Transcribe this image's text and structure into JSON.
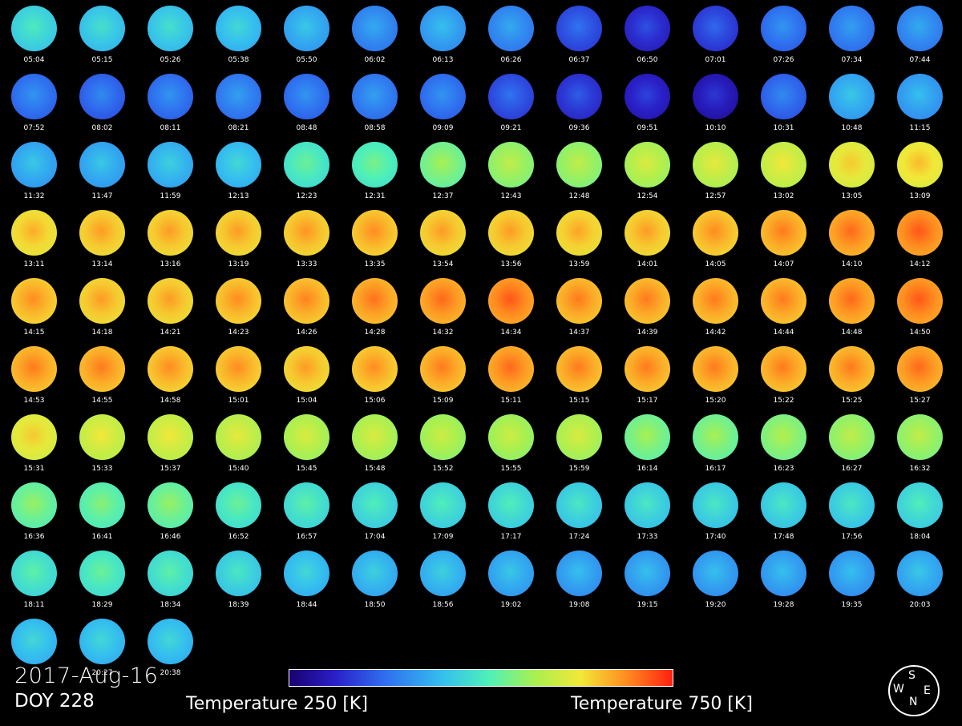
{
  "panels": [
    {
      "time": "05:04",
      "t": 0.45
    },
    {
      "time": "05:15",
      "t": 0.42
    },
    {
      "time": "05:26",
      "t": 0.42
    },
    {
      "time": "05:38",
      "t": 0.4
    },
    {
      "time": "05:50",
      "t": 0.36
    },
    {
      "time": "06:02",
      "t": 0.3
    },
    {
      "time": "06:13",
      "t": 0.34
    },
    {
      "time": "06:26",
      "t": 0.3
    },
    {
      "time": "06:37",
      "t": 0.2
    },
    {
      "time": "06:50",
      "t": 0.14
    },
    {
      "time": "07:01",
      "t": 0.18
    },
    {
      "time": "07:26",
      "t": 0.26
    },
    {
      "time": "07:34",
      "t": 0.28
    },
    {
      "time": "07:44",
      "t": 0.3
    },
    {
      "time": "07:52",
      "t": 0.26
    },
    {
      "time": "08:02",
      "t": 0.24
    },
    {
      "time": "08:11",
      "t": 0.26
    },
    {
      "time": "08:21",
      "t": 0.28
    },
    {
      "time": "08:48",
      "t": 0.26
    },
    {
      "time": "08:58",
      "t": 0.28
    },
    {
      "time": "09:09",
      "t": 0.26
    },
    {
      "time": "09:21",
      "t": 0.2
    },
    {
      "time": "09:36",
      "t": 0.16
    },
    {
      "time": "09:51",
      "t": 0.12
    },
    {
      "time": "10:10",
      "t": 0.1
    },
    {
      "time": "10:31",
      "t": 0.24
    },
    {
      "time": "10:48",
      "t": 0.36
    },
    {
      "time": "11:15",
      "t": 0.34
    },
    {
      "time": "11:32",
      "t": 0.36
    },
    {
      "time": "11:47",
      "t": 0.36
    },
    {
      "time": "11:59",
      "t": 0.38
    },
    {
      "time": "12:13",
      "t": 0.4
    },
    {
      "time": "12:23",
      "t": 0.5
    },
    {
      "time": "12:31",
      "t": 0.52
    },
    {
      "time": "12:37",
      "t": 0.58
    },
    {
      "time": "12:43",
      "t": 0.62
    },
    {
      "time": "12:48",
      "t": 0.62
    },
    {
      "time": "12:54",
      "t": 0.66
    },
    {
      "time": "12:57",
      "t": 0.68
    },
    {
      "time": "13:02",
      "t": 0.7
    },
    {
      "time": "13:05",
      "t": 0.74
    },
    {
      "time": "13:09",
      "t": 0.76
    },
    {
      "time": "13:11",
      "t": 0.78
    },
    {
      "time": "13:14",
      "t": 0.8
    },
    {
      "time": "13:16",
      "t": 0.8
    },
    {
      "time": "13:19",
      "t": 0.8
    },
    {
      "time": "13:33",
      "t": 0.81
    },
    {
      "time": "13:35",
      "t": 0.82
    },
    {
      "time": "13:54",
      "t": 0.8
    },
    {
      "time": "13:56",
      "t": 0.8
    },
    {
      "time": "13:59",
      "t": 0.79
    },
    {
      "time": "14:01",
      "t": 0.8
    },
    {
      "time": "14:05",
      "t": 0.82
    },
    {
      "time": "14:07",
      "t": 0.84
    },
    {
      "time": "14:10",
      "t": 0.86
    },
    {
      "time": "14:12",
      "t": 0.88
    },
    {
      "time": "14:15",
      "t": 0.82
    },
    {
      "time": "14:18",
      "t": 0.8
    },
    {
      "time": "14:21",
      "t": 0.8
    },
    {
      "time": "14:23",
      "t": 0.82
    },
    {
      "time": "14:26",
      "t": 0.83
    },
    {
      "time": "14:28",
      "t": 0.85
    },
    {
      "time": "14:32",
      "t": 0.86
    },
    {
      "time": "14:34",
      "t": 0.88
    },
    {
      "time": "14:37",
      "t": 0.84
    },
    {
      "time": "14:39",
      "t": 0.84
    },
    {
      "time": "14:42",
      "t": 0.84
    },
    {
      "time": "14:44",
      "t": 0.84
    },
    {
      "time": "14:48",
      "t": 0.86
    },
    {
      "time": "14:50",
      "t": 0.88
    },
    {
      "time": "14:53",
      "t": 0.84
    },
    {
      "time": "14:55",
      "t": 0.84
    },
    {
      "time": "14:58",
      "t": 0.82
    },
    {
      "time": "15:01",
      "t": 0.82
    },
    {
      "time": "15:04",
      "t": 0.8
    },
    {
      "time": "15:06",
      "t": 0.82
    },
    {
      "time": "15:09",
      "t": 0.84
    },
    {
      "time": "15:11",
      "t": 0.86
    },
    {
      "time": "15:15",
      "t": 0.84
    },
    {
      "time": "15:17",
      "t": 0.84
    },
    {
      "time": "15:20",
      "t": 0.84
    },
    {
      "time": "15:22",
      "t": 0.84
    },
    {
      "time": "15:25",
      "t": 0.84
    },
    {
      "time": "15:27",
      "t": 0.86
    },
    {
      "time": "15:31",
      "t": 0.74
    },
    {
      "time": "15:33",
      "t": 0.7
    },
    {
      "time": "15:37",
      "t": 0.7
    },
    {
      "time": "15:40",
      "t": 0.68
    },
    {
      "time": "15:45",
      "t": 0.66
    },
    {
      "time": "15:48",
      "t": 0.66
    },
    {
      "time": "15:52",
      "t": 0.64
    },
    {
      "time": "15:55",
      "t": 0.64
    },
    {
      "time": "15:59",
      "t": 0.66
    },
    {
      "time": "16:14",
      "t": 0.58
    },
    {
      "time": "16:17",
      "t": 0.58
    },
    {
      "time": "16:23",
      "t": 0.6
    },
    {
      "time": "16:27",
      "t": 0.62
    },
    {
      "time": "16:32",
      "t": 0.62
    },
    {
      "time": "16:36",
      "t": 0.56
    },
    {
      "time": "16:41",
      "t": 0.54
    },
    {
      "time": "16:46",
      "t": 0.56
    },
    {
      "time": "16:52",
      "t": 0.5
    },
    {
      "time": "16:57",
      "t": 0.48
    },
    {
      "time": "17:04",
      "t": 0.46
    },
    {
      "time": "17:09",
      "t": 0.46
    },
    {
      "time": "17:17",
      "t": 0.46
    },
    {
      "time": "17:24",
      "t": 0.44
    },
    {
      "time": "17:33",
      "t": 0.44
    },
    {
      "time": "17:40",
      "t": 0.44
    },
    {
      "time": "17:48",
      "t": 0.44
    },
    {
      "time": "17:56",
      "t": 0.44
    },
    {
      "time": "18:04",
      "t": 0.46
    },
    {
      "time": "18:11",
      "t": 0.48
    },
    {
      "time": "18:29",
      "t": 0.5
    },
    {
      "time": "18:34",
      "t": 0.48
    },
    {
      "time": "18:39",
      "t": 0.44
    },
    {
      "time": "18:44",
      "t": 0.4
    },
    {
      "time": "18:50",
      "t": 0.38
    },
    {
      "time": "18:56",
      "t": 0.38
    },
    {
      "time": "19:02",
      "t": 0.36
    },
    {
      "time": "19:08",
      "t": 0.34
    },
    {
      "time": "19:15",
      "t": 0.34
    },
    {
      "time": "19:20",
      "t": 0.34
    },
    {
      "time": "19:28",
      "t": 0.34
    },
    {
      "time": "19:35",
      "t": 0.34
    },
    {
      "time": "20:03",
      "t": 0.36
    },
    {
      "time": "",
      "t": 0.4
    },
    {
      "time": "20:27",
      "t": 0.4
    },
    {
      "time": "20:38",
      "t": 0.4
    }
  ],
  "date": "2017-Aug-16",
  "doy": "DOY 228",
  "colorbar": {
    "min_label": "Temperature 250 [K]",
    "max_label": "Temperature 750 [K]"
  },
  "compass": {
    "s": "S",
    "w": "W",
    "n": "N",
    "e": "E"
  }
}
